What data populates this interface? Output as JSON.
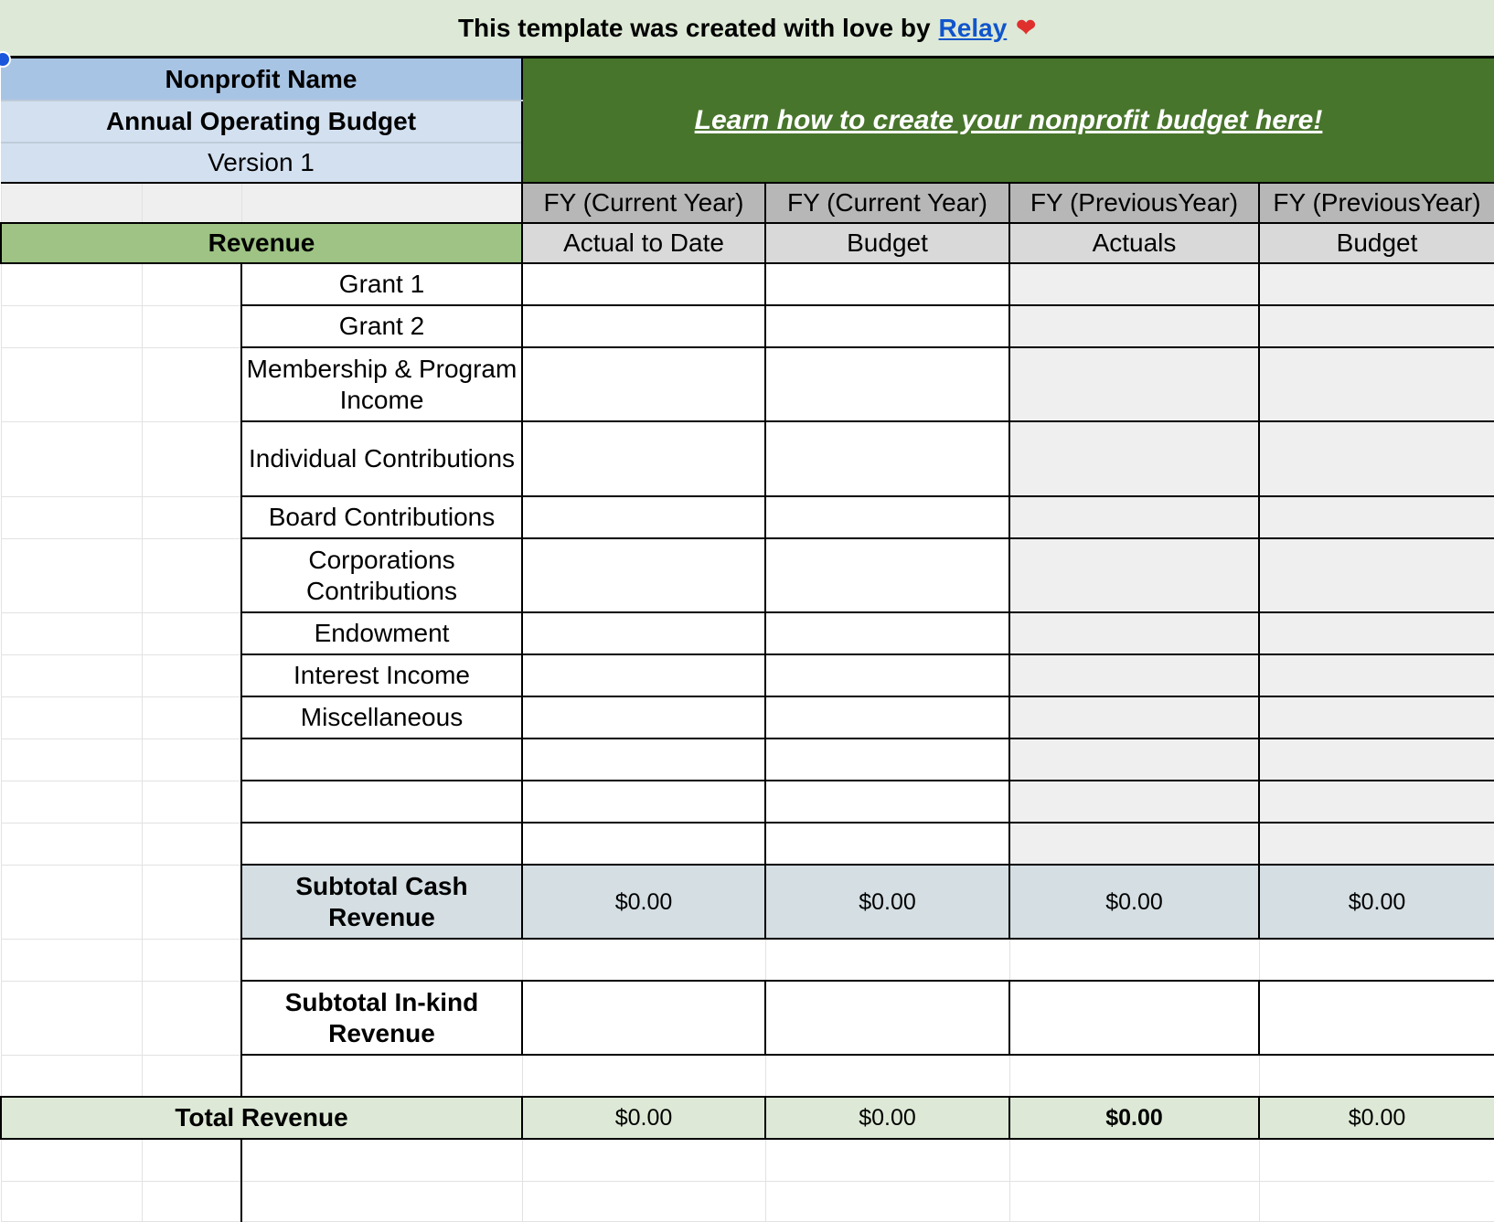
{
  "banner": {
    "text": "This template was created with love by",
    "link": "Relay",
    "icon": "heart-icon"
  },
  "header": {
    "nonprofit_name": "Nonprofit Name",
    "budget_title": "Annual Operating Budget",
    "version": "Version 1",
    "learn_link": "Learn how to create your nonprofit budget here!"
  },
  "columns": [
    {
      "year": "FY (Current Year)",
      "type": "Actual to Date"
    },
    {
      "year": "FY (Current Year)",
      "type": "Budget"
    },
    {
      "year": "FY (PreviousYear)",
      "type": "Actuals"
    },
    {
      "year": "FY (PreviousYear)",
      "type": "Budget"
    }
  ],
  "section": "Revenue",
  "rows": [
    {
      "label": "Grant 1",
      "values": [
        "",
        "",
        "",
        ""
      ]
    },
    {
      "label": "Grant 2",
      "values": [
        "",
        "",
        "",
        ""
      ]
    },
    {
      "label": "Membership & Program Income",
      "values": [
        "",
        "",
        "",
        ""
      ]
    },
    {
      "label": "Individual Contributions",
      "values": [
        "",
        "",
        "",
        ""
      ]
    },
    {
      "label": "Board Contributions",
      "values": [
        "",
        "",
        "",
        ""
      ]
    },
    {
      "label": "Corporations Contributions",
      "values": [
        "",
        "",
        "",
        ""
      ]
    },
    {
      "label": "Endowment",
      "values": [
        "",
        "",
        "",
        ""
      ]
    },
    {
      "label": "Interest Income",
      "values": [
        "",
        "",
        "",
        ""
      ]
    },
    {
      "label": "Miscellaneous",
      "values": [
        "",
        "",
        "",
        ""
      ]
    },
    {
      "label": "",
      "values": [
        "",
        "",
        "",
        ""
      ]
    },
    {
      "label": "",
      "values": [
        "",
        "",
        "",
        ""
      ]
    },
    {
      "label": "",
      "values": [
        "",
        "",
        "",
        ""
      ]
    }
  ],
  "subtotal_cash": {
    "label": "Subtotal Cash Revenue",
    "values": [
      "$0.00",
      "$0.00",
      "$0.00",
      "$0.00"
    ]
  },
  "subtotal_inkind": {
    "label": "Subtotal In-kind Revenue",
    "values": [
      "",
      "",
      "",
      ""
    ]
  },
  "total": {
    "label": "Total Revenue",
    "values": [
      "$0.00",
      "$0.00",
      "$0.00",
      "$0.00"
    ],
    "bold_column": 2
  },
  "colors": {
    "banner": "#dde9d6",
    "header_blue": "#a8c4e4",
    "link_green": "#48752c",
    "revenue_green": "#9ec384",
    "subtotal": "#d4dee3",
    "link_blue": "#1155cc"
  }
}
